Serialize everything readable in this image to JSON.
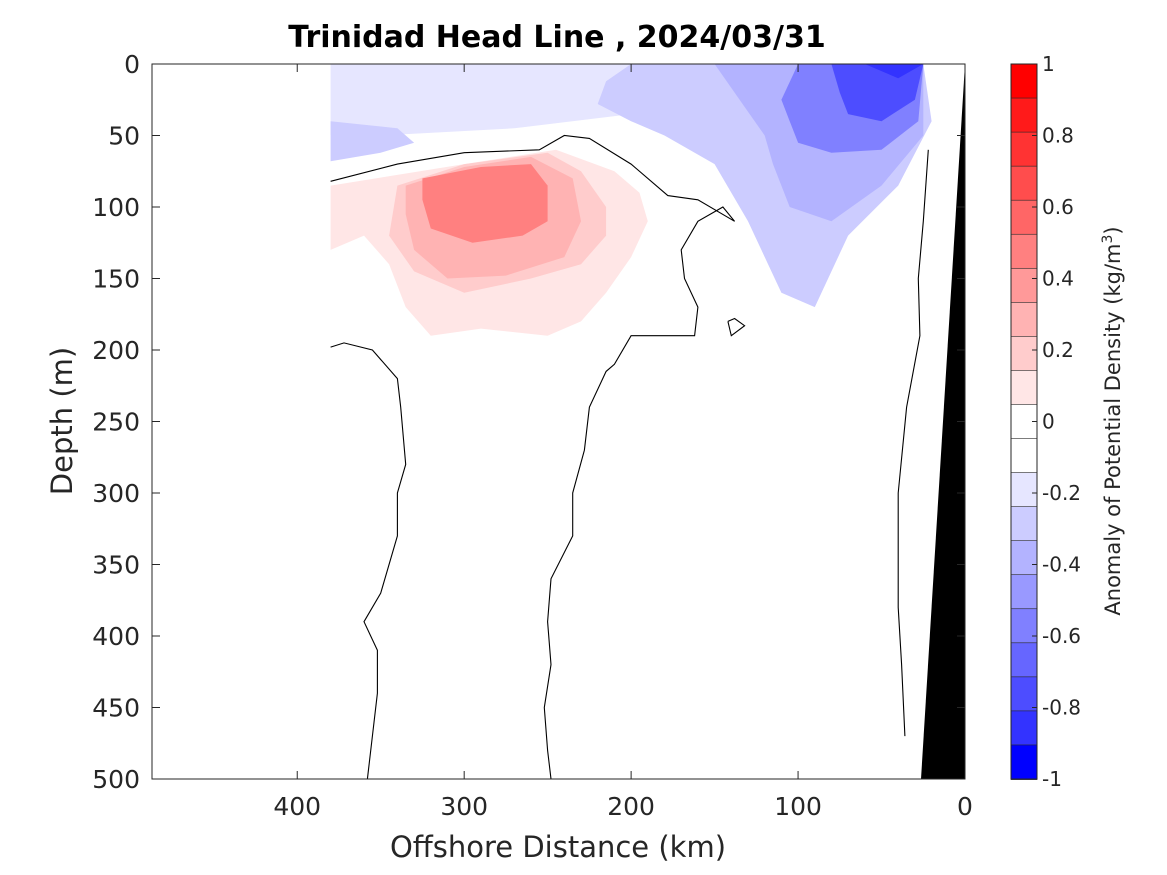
{
  "chart_data": {
    "type": "contour",
    "title": "Trinidad Head Line , 2024/03/31",
    "xlabel": "Offshore Distance (km)",
    "ylabel": "Depth (m)",
    "xlim": [
      487,
      0
    ],
    "ylim": [
      0,
      500
    ],
    "x_reversed": true,
    "y_reversed": true,
    "x_ticks": [
      "400",
      "300",
      "200",
      "100",
      "0"
    ],
    "x_tick_values": [
      400,
      300,
      200,
      100,
      0
    ],
    "y_ticks": [
      "0",
      "50",
      "100",
      "150",
      "200",
      "250",
      "300",
      "350",
      "400",
      "450",
      "500"
    ],
    "y_tick_values": [
      0,
      50,
      100,
      150,
      200,
      250,
      300,
      350,
      400,
      450,
      500
    ],
    "colorbar": {
      "label_main": "Anomaly of Potential Density (kg/m",
      "label_exp": "3",
      "label_close": ")",
      "range": [
        -1,
        1
      ],
      "tick_labels": [
        "1",
        "0.8",
        "0.6",
        "0.4",
        "0.2",
        "0",
        "-0.2",
        "-0.4",
        "-0.6",
        "-0.8",
        "-1"
      ],
      "tick_values": [
        1,
        0.8,
        0.6,
        0.4,
        0.2,
        0,
        -0.2,
        -0.4,
        -0.6,
        -0.8,
        -1
      ],
      "levels": [
        {
          "lo": 0.9,
          "hi": 1.0,
          "color": "#ff0000"
        },
        {
          "lo": 0.8,
          "hi": 0.9,
          "color": "#ff1a1a"
        },
        {
          "lo": 0.7,
          "hi": 0.8,
          "color": "#ff3333"
        },
        {
          "lo": 0.6,
          "hi": 0.7,
          "color": "#ff4d4d"
        },
        {
          "lo": 0.5,
          "hi": 0.6,
          "color": "#ff6666"
        },
        {
          "lo": 0.4,
          "hi": 0.5,
          "color": "#ff8080"
        },
        {
          "lo": 0.3,
          "hi": 0.4,
          "color": "#ff9999"
        },
        {
          "lo": 0.2,
          "hi": 0.3,
          "color": "#ffb3b3"
        },
        {
          "lo": 0.1,
          "hi": 0.2,
          "color": "#ffcccc"
        },
        {
          "lo": 0.0,
          "hi": 0.1,
          "color": "#ffe6e6"
        },
        {
          "lo": -0.05,
          "hi": 0.05,
          "color": "#ffffff"
        },
        {
          "lo": -0.1,
          "hi": 0.0,
          "color": "#ffffff"
        },
        {
          "lo": -0.2,
          "hi": -0.1,
          "color": "#e6e6ff"
        },
        {
          "lo": -0.3,
          "hi": -0.2,
          "color": "#ccccff"
        },
        {
          "lo": -0.4,
          "hi": -0.3,
          "color": "#b3b3ff"
        },
        {
          "lo": -0.5,
          "hi": -0.4,
          "color": "#9999ff"
        },
        {
          "lo": -0.6,
          "hi": -0.5,
          "color": "#8080ff"
        },
        {
          "lo": -0.7,
          "hi": -0.6,
          "color": "#6666ff"
        },
        {
          "lo": -0.8,
          "hi": -0.7,
          "color": "#4d4dff"
        },
        {
          "lo": -0.9,
          "hi": -0.8,
          "color": "#3333ff"
        },
        {
          "lo": -1.0,
          "hi": -0.9,
          "color": "#0000ff"
        }
      ]
    },
    "filled_regions": [
      {
        "name": "surface-negative-anomaly",
        "value_range": [
          -0.2,
          -0.1
        ],
        "color": "#e6e6ff",
        "points": [
          [
            380,
            0
          ],
          [
            200,
            0
          ],
          [
            180,
            12
          ],
          [
            175,
            25
          ],
          [
            200,
            35
          ],
          [
            270,
            45
          ],
          [
            350,
            50
          ],
          [
            380,
            50
          ]
        ]
      },
      {
        "name": "nearshore-negative-anomaly-outer",
        "value_range": [
          -0.3,
          -0.2
        ],
        "color": "#ccccff",
        "points": [
          [
            200,
            0
          ],
          [
            25,
            0
          ],
          [
            20,
            40
          ],
          [
            40,
            85
          ],
          [
            70,
            120
          ],
          [
            90,
            170
          ],
          [
            110,
            160
          ],
          [
            130,
            110
          ],
          [
            150,
            70
          ],
          [
            180,
            50
          ],
          [
            200,
            40
          ],
          [
            220,
            28
          ],
          [
            215,
            12
          ]
        ]
      },
      {
        "name": "offshore-negative-anomaly",
        "value_range": [
          -0.3,
          -0.2
        ],
        "color": "#ccccff",
        "points": [
          [
            380,
            40
          ],
          [
            340,
            45
          ],
          [
            330,
            55
          ],
          [
            350,
            62
          ],
          [
            380,
            68
          ]
        ]
      },
      {
        "name": "nearshore-negative-anomaly-mid",
        "value_range": [
          -0.4,
          -0.3
        ],
        "color": "#b3b3ff",
        "points": [
          [
            150,
            0
          ],
          [
            25,
            0
          ],
          [
            25,
            50
          ],
          [
            50,
            85
          ],
          [
            80,
            110
          ],
          [
            105,
            100
          ],
          [
            115,
            70
          ],
          [
            120,
            50
          ],
          [
            135,
            25
          ]
        ]
      },
      {
        "name": "nearshore-negative-anomaly-inner",
        "value_range": [
          -0.6,
          -0.4
        ],
        "color": "#8080ff",
        "points": [
          [
            100,
            0
          ],
          [
            25,
            0
          ],
          [
            28,
            40
          ],
          [
            50,
            60
          ],
          [
            80,
            62
          ],
          [
            100,
            55
          ],
          [
            105,
            40
          ],
          [
            110,
            25
          ]
        ]
      },
      {
        "name": "nearshore-negative-anomaly-core",
        "value_range": [
          -0.8,
          -0.6
        ],
        "color": "#4d4dff",
        "points": [
          [
            80,
            0
          ],
          [
            25,
            0
          ],
          [
            30,
            25
          ],
          [
            50,
            40
          ],
          [
            70,
            35
          ],
          [
            75,
            20
          ]
        ]
      },
      {
        "name": "nearshore-negative-anomaly-peak",
        "value_range": [
          -1.0,
          -0.8
        ],
        "color": "#3333ff",
        "points": [
          [
            60,
            0
          ],
          [
            25,
            0
          ],
          [
            40,
            10
          ]
        ]
      },
      {
        "name": "subsurface-positive-anomaly-outer",
        "value_range": [
          0.0,
          0.1
        ],
        "color": "#ffe6e6",
        "points": [
          [
            380,
            85
          ],
          [
            300,
            70
          ],
          [
            245,
            60
          ],
          [
            210,
            75
          ],
          [
            195,
            90
          ],
          [
            190,
            110
          ],
          [
            200,
            135
          ],
          [
            215,
            160
          ],
          [
            230,
            180
          ],
          [
            250,
            190
          ],
          [
            290,
            185
          ],
          [
            320,
            190
          ],
          [
            335,
            170
          ],
          [
            345,
            140
          ],
          [
            360,
            120
          ],
          [
            380,
            130
          ]
        ]
      },
      {
        "name": "subsurface-positive-anomaly-mid",
        "value_range": [
          0.1,
          0.2
        ],
        "color": "#ffcccc",
        "points": [
          [
            340,
            85
          ],
          [
            300,
            70
          ],
          [
            250,
            62
          ],
          [
            230,
            75
          ],
          [
            215,
            100
          ],
          [
            215,
            120
          ],
          [
            230,
            140
          ],
          [
            260,
            150
          ],
          [
            300,
            160
          ],
          [
            330,
            145
          ],
          [
            345,
            120
          ]
        ]
      },
      {
        "name": "subsurface-positive-anomaly-high",
        "value_range": [
          0.2,
          0.3
        ],
        "color": "#ffb3b3",
        "points": [
          [
            335,
            85
          ],
          [
            300,
            72
          ],
          [
            260,
            65
          ],
          [
            235,
            80
          ],
          [
            230,
            110
          ],
          [
            240,
            135
          ],
          [
            275,
            148
          ],
          [
            310,
            150
          ],
          [
            330,
            130
          ],
          [
            335,
            105
          ]
        ]
      },
      {
        "name": "subsurface-positive-anomaly-core",
        "value_range": [
          0.3,
          0.5
        ],
        "color": "#ff8080",
        "points": [
          [
            325,
            80
          ],
          [
            290,
            72
          ],
          [
            260,
            70
          ],
          [
            250,
            85
          ],
          [
            250,
            110
          ],
          [
            265,
            120
          ],
          [
            295,
            125
          ],
          [
            320,
            115
          ],
          [
            325,
            95
          ]
        ]
      }
    ],
    "contour_lines": [
      {
        "name": "zero-contour-upper",
        "level": 0,
        "points": [
          [
            380,
            82
          ],
          [
            340,
            70
          ],
          [
            300,
            62
          ],
          [
            255,
            60
          ],
          [
            240,
            50
          ],
          [
            225,
            52
          ],
          [
            200,
            70
          ],
          [
            178,
            92
          ],
          [
            160,
            95
          ],
          [
            138,
            110
          ],
          [
            145,
            100
          ],
          [
            160,
            110
          ],
          [
            170,
            130
          ],
          [
            168,
            150
          ],
          [
            160,
            170
          ],
          [
            162,
            190
          ],
          [
            180,
            190
          ],
          [
            200,
            190
          ],
          [
            210,
            210
          ],
          [
            215,
            215
          ],
          [
            225,
            240
          ],
          [
            228,
            270
          ],
          [
            235,
            300
          ],
          [
            235,
            330
          ],
          [
            248,
            360
          ],
          [
            250,
            390
          ],
          [
            248,
            420
          ],
          [
            252,
            450
          ],
          [
            250,
            480
          ],
          [
            248,
            500
          ]
        ]
      },
      {
        "name": "zero-contour-offshore",
        "level": 0,
        "points": [
          [
            380,
            198
          ],
          [
            372,
            195
          ],
          [
            355,
            200
          ],
          [
            340,
            220
          ],
          [
            338,
            240
          ],
          [
            335,
            280
          ],
          [
            340,
            300
          ],
          [
            340,
            330
          ],
          [
            350,
            370
          ],
          [
            360,
            390
          ],
          [
            352,
            410
          ],
          [
            352,
            440
          ],
          [
            355,
            470
          ],
          [
            358,
            500
          ]
        ]
      },
      {
        "name": "zero-contour-nearshore",
        "level": 0,
        "points": [
          [
            22,
            60
          ],
          [
            25,
            110
          ],
          [
            28,
            150
          ],
          [
            27,
            190
          ],
          [
            35,
            240
          ],
          [
            40,
            300
          ],
          [
            40,
            380
          ],
          [
            38,
            420
          ],
          [
            36,
            470
          ]
        ]
      },
      {
        "name": "zero-contour-loop",
        "level": 0,
        "points": [
          [
            142,
            180
          ],
          [
            138,
            178
          ],
          [
            132,
            183
          ],
          [
            140,
            190
          ],
          [
            142,
            180
          ]
        ]
      }
    ],
    "bathymetry_fill_color": "#000000"
  }
}
